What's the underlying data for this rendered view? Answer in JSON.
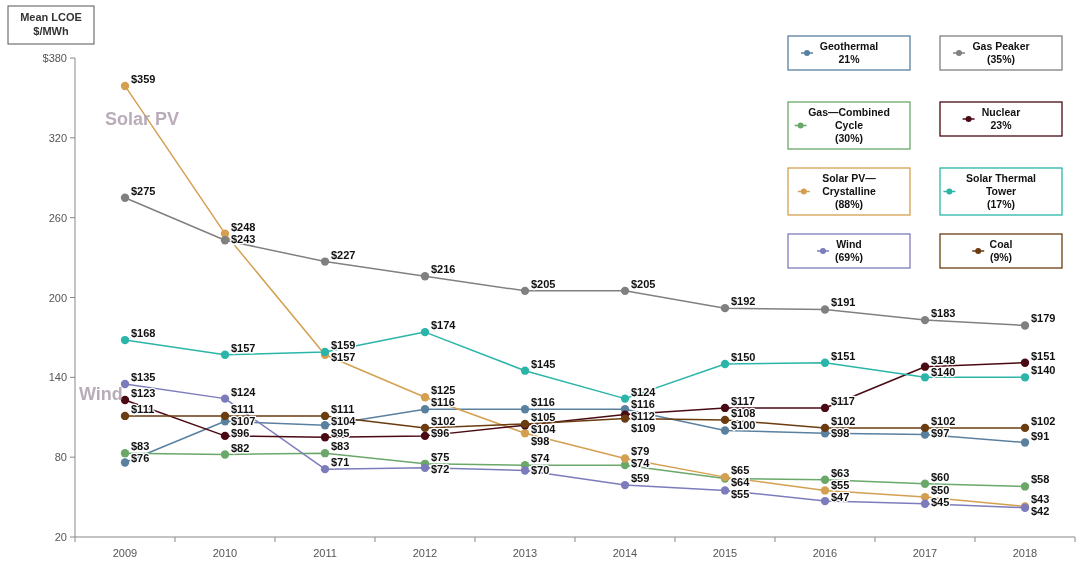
{
  "chart_data": {
    "type": "line",
    "ylabel": "Mean LCOE\n$/MWh",
    "categories": [
      "2009",
      "2010",
      "2011",
      "2012",
      "2013",
      "2014",
      "2015",
      "2016",
      "2017",
      "2018"
    ],
    "ylim": [
      20,
      380
    ],
    "yticks": [
      20,
      80,
      140,
      200,
      260,
      320,
      {
        "value": 380,
        "label": "$380"
      }
    ],
    "series": [
      {
        "name": "Geothermal\n21%",
        "color": "#5a80a0",
        "values": [
          76,
          107,
          104,
          116,
          116,
          116,
          100,
          98,
          97,
          91
        ],
        "value_labels": [
          "$76",
          "$107",
          "$104",
          "$116",
          "$116",
          "$116",
          "$100",
          "$98",
          "$97",
          "$91"
        ]
      },
      {
        "name": "Gas—Combined\nCycle\n(30%)",
        "color": "#6aa86a",
        "values": [
          83,
          82,
          83,
          75,
          74,
          74,
          64,
          63,
          60,
          58
        ],
        "value_labels": [
          "$83",
          "$82",
          "$83",
          "$75",
          "$74",
          "$74",
          "$64",
          "$63",
          "$60",
          "$58"
        ]
      },
      {
        "name": "Solar PV—\nCrystalline\n(88%)",
        "color": "#d4a050",
        "values": [
          359,
          248,
          157,
          125,
          98,
          79,
          65,
          55,
          50,
          43
        ],
        "value_labels": [
          "$359",
          "$248",
          "$157",
          "$125",
          "$98",
          "$79",
          "$65",
          "$55",
          "$50",
          "$43"
        ]
      },
      {
        "name": "Wind\n(69%)",
        "color": "#7c7cbc",
        "values": [
          135,
          124,
          71,
          72,
          70,
          59,
          55,
          47,
          45,
          42
        ],
        "value_labels": [
          "$135",
          "$124",
          "$71",
          "$72",
          "$70",
          "$59",
          "$55",
          "$47",
          "$45",
          "$42"
        ]
      },
      {
        "name": "Gas Peaker\n(35%)",
        "color": "#808080",
        "values": [
          275,
          243,
          227,
          216,
          205,
          205,
          192,
          191,
          183,
          179
        ],
        "value_labels": [
          "$275",
          "$243",
          "$227",
          "$216",
          "$205",
          "$205",
          "$192",
          "$191",
          "$183",
          "$179"
        ]
      },
      {
        "name": "Nuclear\n23%",
        "color": "#4a0a14",
        "values": [
          123,
          96,
          95,
          96,
          104,
          112,
          117,
          117,
          148,
          151
        ],
        "value_labels": [
          "$123",
          "$96",
          "$95",
          "$96",
          "$104",
          "$112",
          "$117",
          "$117",
          "$148",
          "$151"
        ]
      },
      {
        "name": "Solar Thermal\nTower\n(17%)",
        "color": "#2ab5a8",
        "values": [
          168,
          157,
          159,
          174,
          145,
          124,
          150,
          151,
          140,
          140
        ],
        "value_labels": [
          "$168",
          "$157",
          "$159",
          "$174",
          "$145",
          "$124",
          "$150",
          "$151",
          "$140",
          "$140"
        ]
      },
      {
        "name": "Coal\n(9%)",
        "color": "#6a3c10",
        "values": [
          111,
          111,
          111,
          102,
          105,
          109,
          108,
          102,
          102,
          102
        ],
        "value_labels": [
          "$111",
          "$111",
          "$111",
          "$102",
          "$105",
          "$109",
          "$108",
          "$102",
          "$102",
          "$102"
        ]
      }
    ],
    "annotations": [
      "Solar PV",
      "Wind"
    ],
    "marker": "circle",
    "legend": "top right",
    "grid": false
  }
}
